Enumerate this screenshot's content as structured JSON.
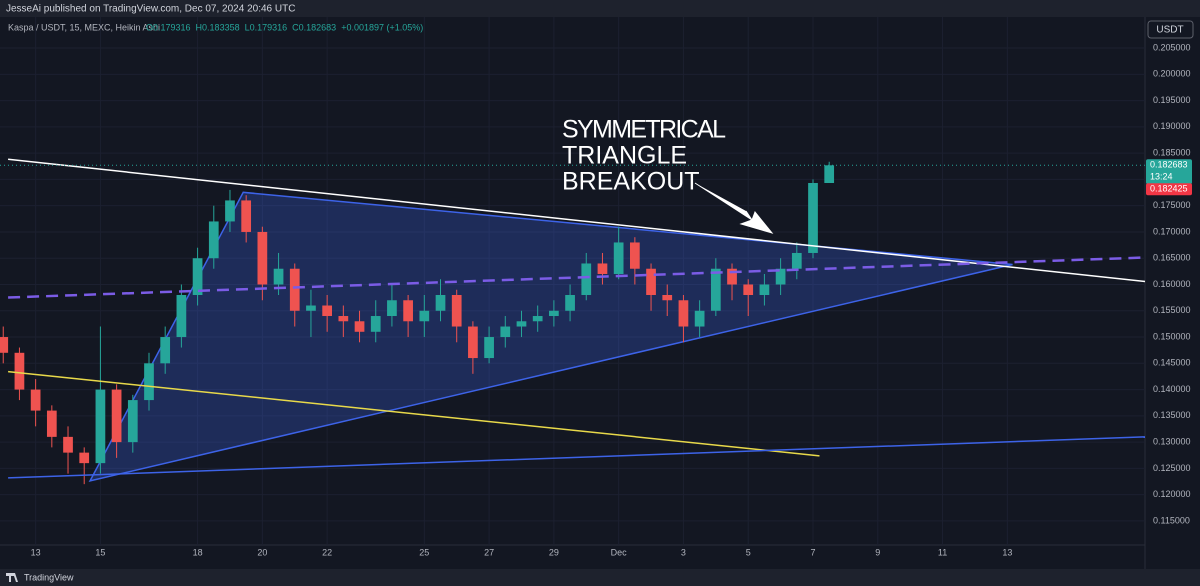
{
  "chart_data": {
    "type": "candlestick",
    "published": "JesseAi published on TradingView.com, Dec 07, 2024 20:46 UTC",
    "symbol": "Kaspa / USDT, 15, MEXC, Heikin Ashi",
    "header_ohlc": [
      "O0.179316",
      "H0.183358",
      "L0.179316",
      "C0.182683",
      "+0.001897 (+1.05%)"
    ],
    "currency": "USDT",
    "brand": "TradingView",
    "annotation": [
      "SYMMETRICAL",
      "TRIANGLE",
      "BREAKOUT"
    ],
    "up_color": "#26a69a",
    "down_color": "#ef5350",
    "xlim": [
      11.9,
      47.25
    ],
    "xticks": [
      13,
      15,
      18,
      20,
      22,
      25,
      27,
      29,
      {
        "value": 31,
        "label": "Dec"
      },
      {
        "value": 33,
        "label": "3"
      },
      {
        "value": 35,
        "label": "5"
      },
      {
        "value": 37,
        "label": "7"
      },
      {
        "value": 39,
        "label": "9"
      },
      {
        "value": 41,
        "label": "11"
      },
      {
        "value": 43,
        "label": "13"
      }
    ],
    "ylim": [
      0.11042,
      0.21091
    ],
    "yticks": [
      {
        "value": 0.115,
        "label": "0.115000"
      },
      {
        "value": 0.12,
        "label": "0.120000"
      },
      {
        "value": 0.125,
        "label": "0.125000"
      },
      {
        "value": 0.13,
        "label": "0.130000"
      },
      {
        "value": 0.135,
        "label": "0.135000"
      },
      {
        "value": 0.14,
        "label": "0.140000"
      },
      {
        "value": 0.145,
        "label": "0.145000"
      },
      {
        "value": 0.15,
        "label": "0.150000"
      },
      {
        "value": 0.155,
        "label": "0.155000"
      },
      {
        "value": 0.16,
        "label": "0.160000"
      },
      {
        "value": 0.165,
        "label": "0.165000"
      },
      {
        "value": 0.17,
        "label": "0.170000"
      },
      {
        "value": 0.175,
        "label": "0.175000"
      },
      {
        "value": 0.18,
        "label": "0.180000"
      },
      {
        "value": 0.185,
        "label": "0.185000"
      },
      {
        "value": 0.19,
        "label": "0.190000"
      },
      {
        "value": 0.195,
        "label": "0.195000"
      },
      {
        "value": 0.2,
        "label": "0.200000"
      },
      {
        "value": 0.205,
        "label": "0.205000"
      }
    ],
    "grid": true,
    "x": [
      12,
      12.5,
      13,
      13.5,
      14,
      14.5,
      15,
      15.5,
      16,
      16.5,
      17,
      17.5,
      18,
      18.5,
      19,
      19.5,
      20,
      20.5,
      21,
      21.5,
      22,
      22.5,
      23,
      23.5,
      24,
      24.5,
      25,
      25.5,
      26,
      26.5,
      27,
      27.5,
      28,
      28.5,
      29,
      29.5,
      30,
      30.5,
      31,
      31.5,
      32,
      32.5,
      33,
      33.5,
      34,
      34.5,
      35,
      35.5,
      36,
      36.5,
      37,
      37.5
    ],
    "ohlc": [
      [
        0.15,
        0.152,
        0.145,
        0.147
      ],
      [
        0.147,
        0.148,
        0.138,
        0.14
      ],
      [
        0.14,
        0.142,
        0.133,
        0.136
      ],
      [
        0.136,
        0.137,
        0.129,
        0.131
      ],
      [
        0.131,
        0.133,
        0.124,
        0.128
      ],
      [
        0.128,
        0.129,
        0.122,
        0.126
      ],
      [
        0.126,
        0.152,
        0.124,
        0.14
      ],
      [
        0.14,
        0.141,
        0.127,
        0.13
      ],
      [
        0.13,
        0.139,
        0.128,
        0.138
      ],
      [
        0.138,
        0.147,
        0.136,
        0.145
      ],
      [
        0.145,
        0.152,
        0.143,
        0.15
      ],
      [
        0.15,
        0.16,
        0.148,
        0.158
      ],
      [
        0.158,
        0.167,
        0.156,
        0.165
      ],
      [
        0.165,
        0.175,
        0.163,
        0.172
      ],
      [
        0.172,
        0.178,
        0.17,
        0.176
      ],
      [
        0.176,
        0.177,
        0.168,
        0.17
      ],
      [
        0.17,
        0.171,
        0.157,
        0.16
      ],
      [
        0.16,
        0.166,
        0.158,
        0.163
      ],
      [
        0.163,
        0.164,
        0.152,
        0.155
      ],
      [
        0.155,
        0.159,
        0.15,
        0.156
      ],
      [
        0.156,
        0.158,
        0.151,
        0.154
      ],
      [
        0.154,
        0.156,
        0.15,
        0.153
      ],
      [
        0.153,
        0.155,
        0.149,
        0.151
      ],
      [
        0.151,
        0.157,
        0.149,
        0.154
      ],
      [
        0.154,
        0.16,
        0.152,
        0.157
      ],
      [
        0.157,
        0.158,
        0.15,
        0.153
      ],
      [
        0.153,
        0.158,
        0.15,
        0.155
      ],
      [
        0.155,
        0.161,
        0.153,
        0.158
      ],
      [
        0.158,
        0.159,
        0.149,
        0.152
      ],
      [
        0.152,
        0.153,
        0.143,
        0.146
      ],
      [
        0.146,
        0.152,
        0.145,
        0.15
      ],
      [
        0.15,
        0.154,
        0.148,
        0.152
      ],
      [
        0.152,
        0.155,
        0.15,
        0.153
      ],
      [
        0.153,
        0.156,
        0.151,
        0.154
      ],
      [
        0.154,
        0.157,
        0.152,
        0.155
      ],
      [
        0.155,
        0.16,
        0.153,
        0.158
      ],
      [
        0.158,
        0.166,
        0.157,
        0.164
      ],
      [
        0.164,
        0.166,
        0.16,
        0.162
      ],
      [
        0.162,
        0.171,
        0.161,
        0.168
      ],
      [
        0.168,
        0.169,
        0.16,
        0.163
      ],
      [
        0.163,
        0.164,
        0.155,
        0.158
      ],
      [
        0.158,
        0.16,
        0.154,
        0.157
      ],
      [
        0.157,
        0.158,
        0.149,
        0.152
      ],
      [
        0.152,
        0.157,
        0.15,
        0.155
      ],
      [
        0.155,
        0.165,
        0.154,
        0.163
      ],
      [
        0.163,
        0.164,
        0.157,
        0.16
      ],
      [
        0.16,
        0.161,
        0.154,
        0.158
      ],
      [
        0.158,
        0.162,
        0.156,
        0.16
      ],
      [
        0.16,
        0.165,
        0.158,
        0.163
      ],
      [
        0.163,
        0.168,
        0.161,
        0.166
      ],
      [
        0.166,
        0.18,
        0.165,
        0.179316
      ],
      [
        0.179316,
        0.183358,
        0.179316,
        0.182683
      ]
    ],
    "last_price": 0.182683,
    "countdown": "13:24",
    "prev_price": 0.182425,
    "triangle": {
      "color": "#3d63e8",
      "points": [
        [
          14.68,
          0.12262
        ],
        [
          19.41,
          0.17754
        ],
        [
          43.16,
          0.16381
        ]
      ]
    },
    "lines": [
      {
        "color": "#ffffff",
        "dash": false,
        "points": [
          [
            12.15,
            0.18383
          ],
          [
            47.25,
            0.16057
          ]
        ]
      },
      {
        "color": "#7b5ce6",
        "dash": true,
        "points": [
          [
            12.15,
            0.15752
          ],
          [
            47.25,
            0.16514
          ]
        ]
      },
      {
        "color": "#e8d94a",
        "dash": false,
        "points": [
          [
            12.15,
            0.14341
          ],
          [
            37.2,
            0.12739
          ]
        ]
      },
      {
        "color": "#3d63e8",
        "dash": false,
        "points": [
          [
            12.15,
            0.12319
          ],
          [
            47.25,
            0.13101
          ]
        ]
      }
    ]
  }
}
